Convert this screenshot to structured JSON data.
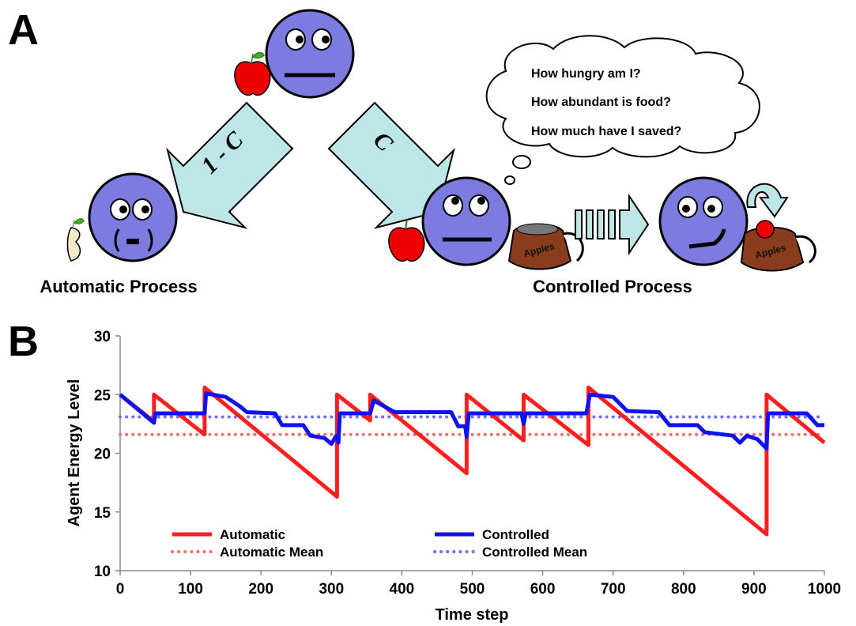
{
  "diagram": {
    "panel_label": "A",
    "arrow_left_label": "1 - C",
    "arrow_right_label": "C",
    "thoughts": [
      "How hungry am I?",
      "How abundant is food?",
      "How much have I saved?"
    ],
    "bag_label": "Apples",
    "left_caption": "Automatic Process",
    "right_caption": "Controlled Process"
  },
  "chart_data": {
    "type": "line",
    "panel_label": "B",
    "x_label": "Time step",
    "y_label": "Agent Energy Level",
    "xlim": [
      0,
      1000
    ],
    "ylim": [
      10,
      30
    ],
    "xticks": [
      0,
      100,
      200,
      300,
      400,
      500,
      600,
      700,
      800,
      900,
      1000
    ],
    "yticks": [
      10,
      15,
      20,
      25,
      30
    ],
    "series": [
      {
        "name": "Automatic",
        "color": "#ff1f1f",
        "linestyle": "solid",
        "x": [
          0,
          48,
          48,
          120,
          120,
          308,
          308,
          355,
          355,
          492,
          492,
          573,
          573,
          665,
          665,
          918,
          918,
          1000
        ],
        "values": [
          25,
          22.7,
          25,
          21.6,
          25.6,
          16.3,
          25,
          22.8,
          25,
          18.3,
          25,
          21.1,
          25,
          20.7,
          25.6,
          13.1,
          25,
          20.9
        ]
      },
      {
        "name": "Controlled",
        "color": "#1010f0",
        "linestyle": "solid",
        "x": [
          0,
          48,
          50,
          120,
          122,
          150,
          170,
          180,
          220,
          230,
          260,
          270,
          290,
          300,
          307,
          310,
          312,
          355,
          360,
          390,
          470,
          480,
          490,
          492,
          495,
          570,
          573,
          576,
          662,
          667,
          700,
          720,
          765,
          780,
          820,
          830,
          870,
          880,
          890,
          905,
          918,
          920,
          975,
          990,
          1000
        ],
        "values": [
          25,
          22.6,
          23.4,
          23.4,
          25.1,
          24.8,
          24,
          23.5,
          23.4,
          22.4,
          22.4,
          21.5,
          21.3,
          20.8,
          21.5,
          20.9,
          23.4,
          23.4,
          24.5,
          23.5,
          23.5,
          22.3,
          22.3,
          21.4,
          23.4,
          23.4,
          22.5,
          23.4,
          23.4,
          25,
          24.8,
          23.6,
          23.5,
          22.4,
          22.4,
          21.8,
          21.5,
          20.9,
          21.5,
          21.2,
          20.4,
          23.4,
          23.4,
          22.4,
          22.4
        ]
      },
      {
        "name": "Automatic Mean",
        "color": "#f07070",
        "linestyle": "dotted",
        "x": [
          0,
          1000
        ],
        "values": [
          21.6,
          21.6
        ]
      },
      {
        "name": "Controlled Mean",
        "color": "#7070f0",
        "linestyle": "dotted",
        "x": [
          0,
          1000
        ],
        "values": [
          23.1,
          23.1
        ]
      }
    ]
  }
}
